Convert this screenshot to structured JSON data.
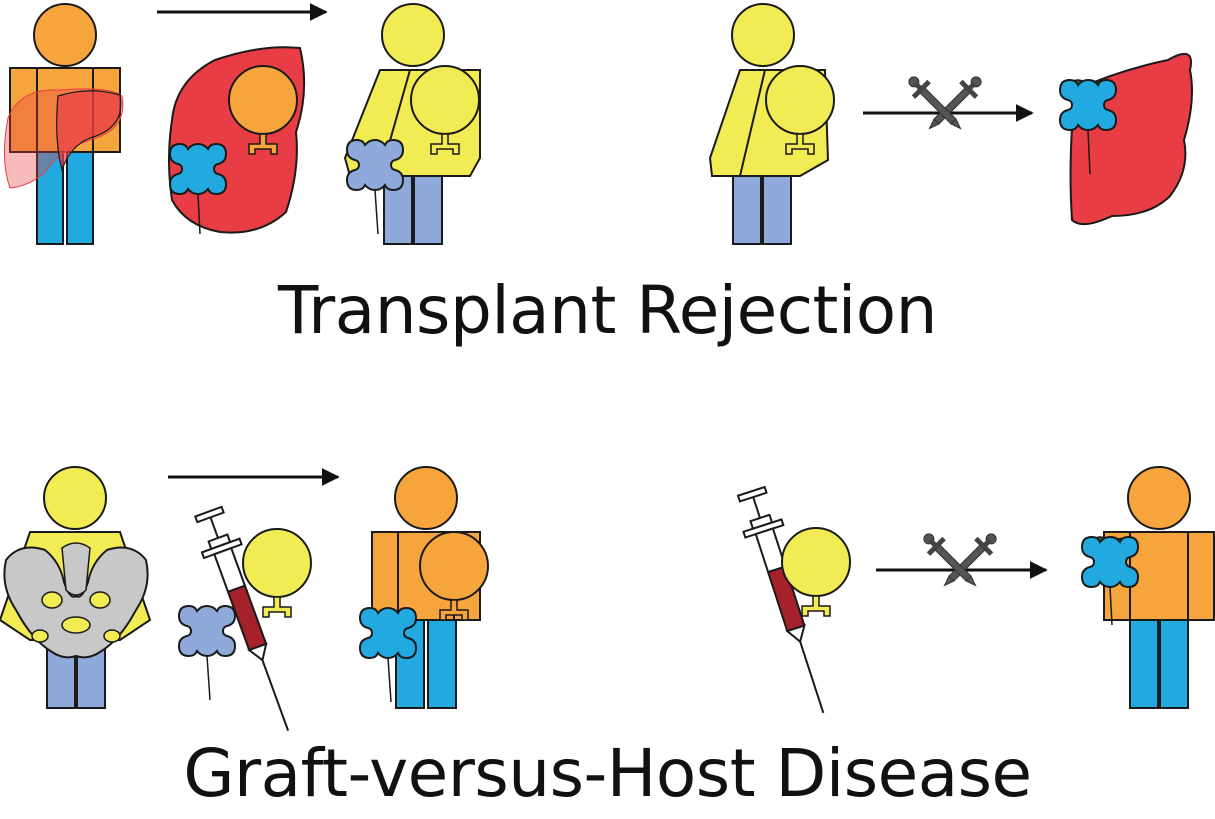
{
  "panels": {
    "transplant_rejection": {
      "title": "Transplant Rejection"
    },
    "gvhd": {
      "title": "Graft-versus-Host Disease"
    }
  },
  "colors": {
    "donor_orange": "#f6a53d",
    "recipient_yellow": "#f1ec54",
    "organ_red": "#e93d46",
    "receptor_blue": "#22a9e0",
    "receptor_lightblue": "#8ea9da",
    "pelvis_gray": "#c8c8c8",
    "blood_red": "#a7212a",
    "mhc_green": "#1f6f3e",
    "sword_gray": "#555555",
    "outline": "#1a1a1a"
  },
  "icons": [
    "person-icon",
    "liver-icon",
    "cell-icon",
    "receptor-icon",
    "arrow-icon",
    "crossed-swords-icon",
    "pelvis-icon",
    "syringe-icon"
  ]
}
